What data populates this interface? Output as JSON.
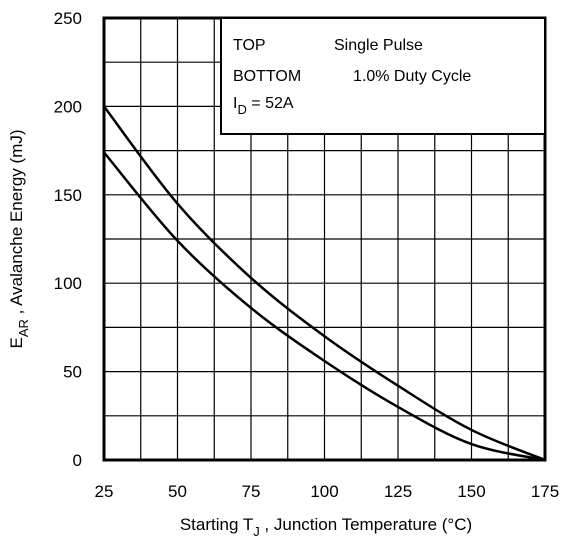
{
  "chart_data": {
    "type": "line",
    "title": "",
    "xlabel": {
      "prefix": "Starting T",
      "sub": "J",
      "suffix": " , Junction Temperature (°C)"
    },
    "ylabel": {
      "prefix": "E",
      "sub": "AR",
      "suffix": " , Avalanche Energy (mJ)"
    },
    "xlim": [
      25,
      175
    ],
    "ylim": [
      0,
      250
    ],
    "xticks": [
      "25",
      "50",
      "75",
      "100",
      "125",
      "150",
      "175"
    ],
    "yticks": [
      "0",
      "50",
      "100",
      "150",
      "200",
      "250"
    ],
    "x_gridlines": [
      25,
      37.5,
      50,
      62.5,
      75,
      87.5,
      100,
      112.5,
      125,
      137.5,
      150,
      162.5,
      175
    ],
    "y_gridlines": [
      0,
      25,
      50,
      75,
      100,
      125,
      150,
      175,
      200,
      225,
      250
    ],
    "grid": true,
    "legend": {
      "position": "top-right",
      "lines": [
        {
          "key": "TOP",
          "value": "Single Pulse"
        },
        {
          "key": "BOTTOM",
          "value": "1.0% Duty Cycle"
        }
      ],
      "id_label": {
        "prefix": "I",
        "sub": "D",
        "suffix": " = 52A"
      }
    },
    "series": [
      {
        "x": [
          25,
          50,
          75,
          100,
          125,
          150,
          175
        ],
        "values": [
          200,
          145,
          103,
          70,
          42,
          17,
          0
        ]
      },
      {
        "x": [
          25,
          50,
          75,
          100,
          125,
          150,
          175
        ],
        "values": [
          174,
          124,
          86,
          56,
          30,
          9,
          0
        ]
      }
    ]
  }
}
